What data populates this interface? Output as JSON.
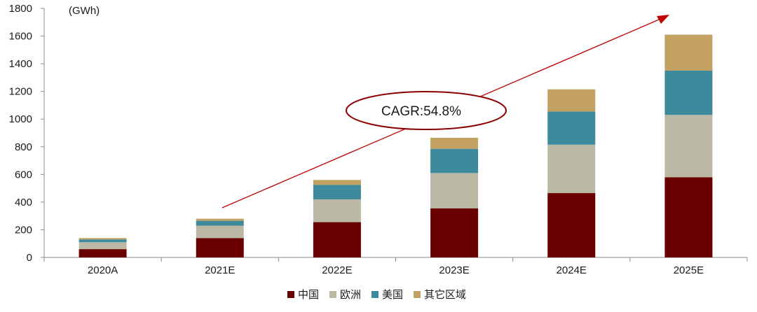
{
  "chart_data": {
    "type": "bar",
    "stacked": true,
    "unit_label": "(GWh)",
    "categories": [
      "2020A",
      "2021E",
      "2022E",
      "2023E",
      "2024E",
      "2025E"
    ],
    "series": [
      {
        "name": "中国",
        "color": "#6b0000",
        "values": [
          60,
          140,
          255,
          355,
          465,
          580
        ]
      },
      {
        "name": "欧洲",
        "color": "#bbb9a6",
        "values": [
          50,
          90,
          165,
          255,
          350,
          450
        ]
      },
      {
        "name": "美国",
        "color": "#3c8a9c",
        "values": [
          20,
          35,
          105,
          175,
          240,
          320
        ]
      },
      {
        "name": "其它区域",
        "color": "#c2a162",
        "values": [
          10,
          15,
          35,
          80,
          160,
          260
        ]
      }
    ],
    "ylim": [
      0,
      1800
    ],
    "yticks": [
      0,
      200,
      400,
      600,
      800,
      1000,
      1200,
      1400,
      1600,
      1800
    ],
    "grid": false,
    "legend_position": "bottom-center",
    "annotation": {
      "text": "CAGR:54.8%",
      "arrow_color": "#c00000",
      "ellipse_color": "#8b0000"
    }
  }
}
